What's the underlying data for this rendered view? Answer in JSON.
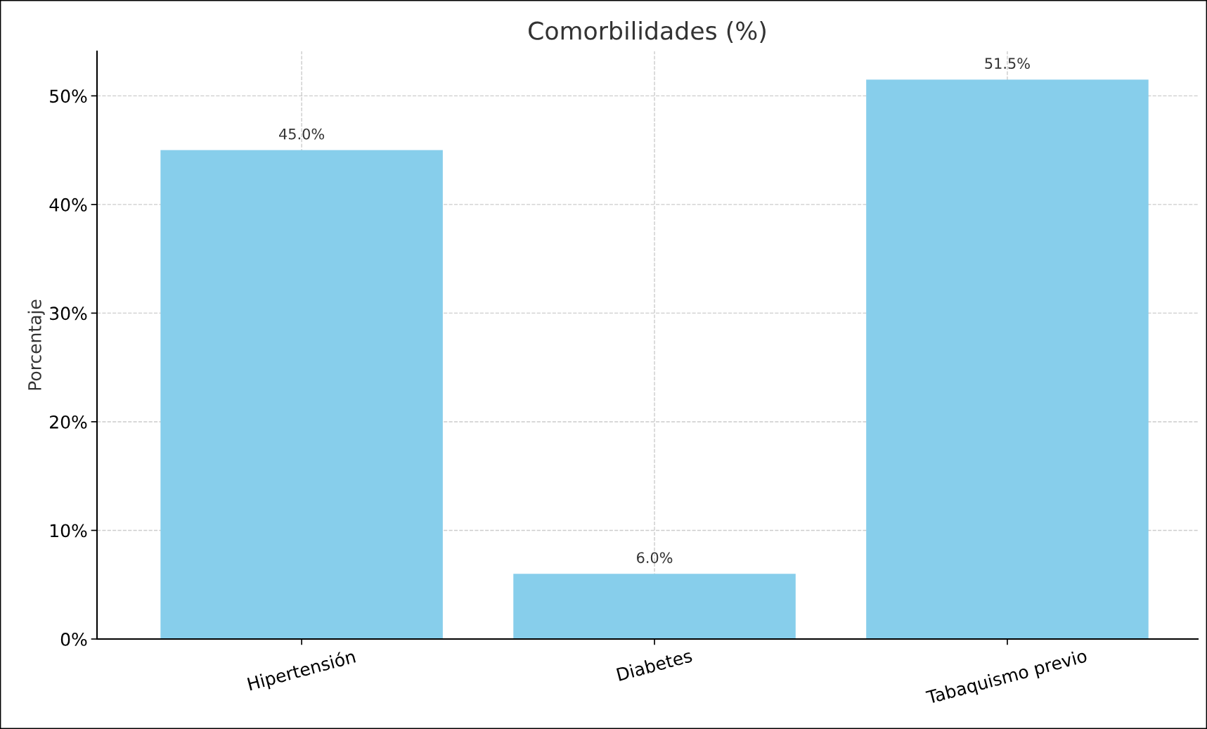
{
  "chart_data": {
    "type": "bar",
    "title": "Comorbilidades (%)",
    "ylabel": "Porcentaje",
    "categories": [
      "Hipertensión",
      "Diabetes",
      "Tabaquismo previo"
    ],
    "values": [
      45.0,
      6.0,
      51.5
    ],
    "color": "#87ceeb",
    "value_labels": [
      "45.0%",
      "6.0%",
      "51.5%"
    ],
    "ylim": [
      0,
      54.1
    ],
    "yticks": [
      {
        "value": 0,
        "label": "0%"
      },
      {
        "value": 10,
        "label": "10%"
      },
      {
        "value": 20,
        "label": "20%"
      },
      {
        "value": 30,
        "label": "30%"
      },
      {
        "value": 40,
        "label": "40%"
      },
      {
        "value": 50,
        "label": "50%"
      }
    ],
    "grid": true
  }
}
